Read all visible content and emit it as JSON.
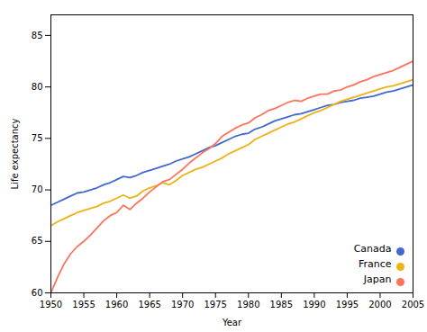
{
  "chart_data": {
    "type": "line",
    "xlabel": "Year",
    "ylabel": "Life expectancy",
    "x": [
      1950,
      1951,
      1952,
      1953,
      1954,
      1955,
      1956,
      1957,
      1958,
      1959,
      1960,
      1961,
      1962,
      1963,
      1964,
      1965,
      1966,
      1967,
      1968,
      1969,
      1970,
      1971,
      1972,
      1973,
      1974,
      1975,
      1976,
      1977,
      1978,
      1979,
      1980,
      1981,
      1982,
      1983,
      1984,
      1985,
      1986,
      1987,
      1988,
      1989,
      1990,
      1991,
      1992,
      1993,
      1994,
      1995,
      1996,
      1997,
      1998,
      1999,
      2000,
      2001,
      2002,
      2003,
      2004,
      2005
    ],
    "series": [
      {
        "name": "Canada",
        "values": [
          68.5,
          68.8,
          69.1,
          69.4,
          69.7,
          69.8,
          70.0,
          70.2,
          70.5,
          70.7,
          71.0,
          71.3,
          71.2,
          71.4,
          71.7,
          71.9,
          72.1,
          72.3,
          72.5,
          72.8,
          73.0,
          73.2,
          73.5,
          73.8,
          74.1,
          74.3,
          74.6,
          74.9,
          75.2,
          75.4,
          75.5,
          75.9,
          76.1,
          76.4,
          76.7,
          76.9,
          77.1,
          77.3,
          77.4,
          77.6,
          77.8,
          78.0,
          78.2,
          78.3,
          78.5,
          78.6,
          78.7,
          78.9,
          79.0,
          79.1,
          79.3,
          79.5,
          79.6,
          79.8,
          80.0,
          80.2
        ]
      },
      {
        "name": "France",
        "values": [
          66.5,
          66.9,
          67.2,
          67.5,
          67.8,
          68.0,
          68.2,
          68.4,
          68.7,
          68.9,
          69.2,
          69.5,
          69.2,
          69.4,
          69.9,
          70.2,
          70.4,
          70.7,
          70.5,
          70.9,
          71.4,
          71.7,
          72.0,
          72.2,
          72.5,
          72.8,
          73.1,
          73.5,
          73.8,
          74.1,
          74.4,
          74.9,
          75.2,
          75.5,
          75.8,
          76.1,
          76.4,
          76.6,
          76.9,
          77.2,
          77.5,
          77.7,
          78.0,
          78.3,
          78.6,
          78.8,
          79.0,
          79.2,
          79.4,
          79.6,
          79.8,
          80.0,
          80.1,
          80.3,
          80.5,
          80.7
        ]
      },
      {
        "name": "Japan",
        "values": [
          60.0,
          61.5,
          62.8,
          63.8,
          64.5,
          65.0,
          65.6,
          66.3,
          67.0,
          67.5,
          67.8,
          68.5,
          68.1,
          68.7,
          69.2,
          69.8,
          70.3,
          70.8,
          71.0,
          71.5,
          72.0,
          72.6,
          73.1,
          73.6,
          74.0,
          74.5,
          75.2,
          75.6,
          76.0,
          76.3,
          76.5,
          77.0,
          77.3,
          77.7,
          77.9,
          78.2,
          78.5,
          78.7,
          78.6,
          78.9,
          79.1,
          79.3,
          79.3,
          79.6,
          79.7,
          80.0,
          80.2,
          80.5,
          80.7,
          81.0,
          81.2,
          81.4,
          81.6,
          81.9,
          82.2,
          82.5
        ]
      }
    ],
    "xlim": [
      1950,
      2005
    ],
    "xticks": [
      1950,
      1955,
      1960,
      1965,
      1970,
      1975,
      1980,
      1985,
      1990,
      1995,
      2000,
      2005
    ],
    "ylim": [
      60,
      87
    ],
    "yticks": [
      60,
      65,
      70,
      75,
      80,
      85
    ],
    "legend": "lower right"
  }
}
